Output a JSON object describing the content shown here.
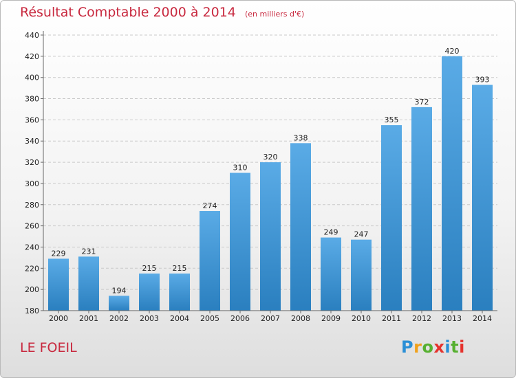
{
  "chart_data": {
    "type": "bar",
    "title": "Résultat Comptable 2000 à 2014",
    "subtitle": "(en milliers d'€)",
    "categories": [
      "2000",
      "2001",
      "2002",
      "2003",
      "2004",
      "2005",
      "2006",
      "2007",
      "2008",
      "2009",
      "2010",
      "2011",
      "2012",
      "2013",
      "2014"
    ],
    "values": [
      229,
      231,
      194,
      215,
      215,
      274,
      310,
      320,
      338,
      249,
      247,
      355,
      372,
      420,
      393
    ],
    "ylim": [
      180,
      440
    ],
    "yticks": [
      180,
      200,
      220,
      240,
      260,
      280,
      300,
      320,
      340,
      360,
      380,
      400,
      420,
      440
    ],
    "grid": true,
    "bar_color_top": "#5aabe6",
    "bar_color_bottom": "#2a7fbf"
  },
  "footer": {
    "commune": "LE FOEIL"
  },
  "logo": {
    "letters": [
      "P",
      "r",
      "o",
      "x",
      "i",
      "t",
      "i"
    ],
    "colors": [
      "#2a8fd6",
      "#f0a11c",
      "#56b030",
      "#e5322d",
      "#2a8fd6",
      "#56b030",
      "#e5322d"
    ]
  }
}
